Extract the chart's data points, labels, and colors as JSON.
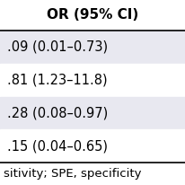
{
  "header": "OR (95% CI)",
  "rows": [
    ".09 (0.01–0.73)",
    ".81 (1.23–11.8)",
    ".28 (0.08–0.97)",
    ".15 (0.04–0.65)"
  ],
  "footer": "sitivity; SPE, specificity",
  "header_bg": "#ffffff",
  "row_colors": [
    "#e8e8f0",
    "#ffffff",
    "#e8e8f0",
    "#ffffff"
  ],
  "footer_bg": "#ffffff",
  "line_color": "#000000",
  "text_color": "#000000",
  "header_fontsize": 11,
  "row_fontsize": 10.5,
  "footer_fontsize": 9.5
}
